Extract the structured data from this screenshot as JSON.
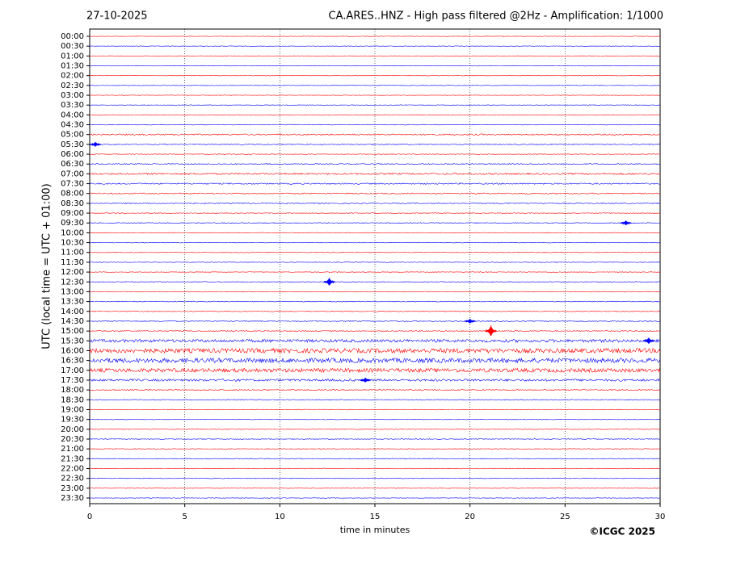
{
  "chart_data": {
    "type": "helicorder",
    "date": "27-10-2025",
    "title": "CA.ARES..HNZ - High pass filtered @2Hz - Amplification: 1/1000",
    "ylabel": "UTC (local time = UTC + 01:00)",
    "xlabel": "time in minutes",
    "copyright": "©ICGC 2025",
    "xlim": [
      0,
      30
    ],
    "xticks": [
      0,
      5,
      10,
      15,
      20,
      25,
      30
    ],
    "grid": true,
    "colors": [
      "#ff0000",
      "#0000ff"
    ],
    "categories": [
      "00:00",
      "00:30",
      "01:00",
      "01:30",
      "02:00",
      "02:30",
      "03:00",
      "03:30",
      "04:00",
      "04:30",
      "05:00",
      "05:30",
      "06:00",
      "06:30",
      "07:00",
      "07:30",
      "08:00",
      "08:30",
      "09:00",
      "09:30",
      "10:00",
      "10:30",
      "11:00",
      "11:30",
      "12:00",
      "12:30",
      "13:00",
      "13:30",
      "14:00",
      "14:30",
      "15:00",
      "15:30",
      "16:00",
      "16:30",
      "17:00",
      "17:30",
      "18:00",
      "18:30",
      "19:00",
      "19:30",
      "20:00",
      "20:30",
      "21:00",
      "21:30",
      "22:00",
      "22:30",
      "23:00",
      "23:30"
    ],
    "noise": [
      0.3,
      0.3,
      0.3,
      0.3,
      0.3,
      0.3,
      0.3,
      0.3,
      0.3,
      0.4,
      0.8,
      0.6,
      0.4,
      0.6,
      1.0,
      0.8,
      0.7,
      0.6,
      0.4,
      0.5,
      0.4,
      0.4,
      0.4,
      0.4,
      0.4,
      0.5,
      0.4,
      0.5,
      0.5,
      0.6,
      0.6,
      1.8,
      2.8,
      2.8,
      2.4,
      1.4,
      0.7,
      0.5,
      0.4,
      0.4,
      0.4,
      0.4,
      0.4,
      0.5,
      0.4,
      0.4,
      0.3,
      0.3
    ],
    "events": {
      "rows": [
        11,
        19,
        25,
        29,
        30,
        31,
        35
      ],
      "x": [
        0.3,
        28.2,
        12.6,
        20.0,
        21.1,
        29.4,
        14.5
      ],
      "amplitude": [
        3,
        3,
        5,
        3,
        7,
        4,
        3
      ]
    }
  }
}
